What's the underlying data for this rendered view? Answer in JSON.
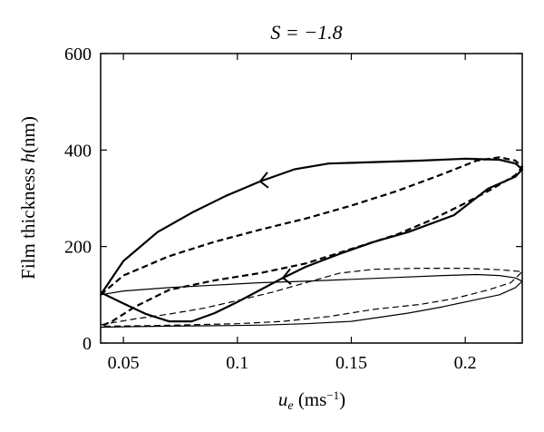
{
  "chart_data": {
    "type": "line",
    "title": "S = −1.8",
    "ylabel": "Film thickness h(nm)",
    "xlabel": "u_e (ms⁻¹)",
    "xlim": [
      0.04,
      0.225
    ],
    "ylim": [
      0,
      600
    ],
    "xticks": [
      0.05,
      0.1,
      0.15,
      0.2
    ],
    "xtick_labels": [
      "0.05",
      "0.1",
      "0.15",
      "0.2"
    ],
    "yticks": [
      0,
      200,
      400,
      600
    ],
    "ytick_labels": [
      "0",
      "200",
      "400",
      "600"
    ],
    "grid": false,
    "legend": "none",
    "series": [
      {
        "style": "thick-solid",
        "points": [
          [
            0.04,
            100
          ],
          [
            0.05,
            170
          ],
          [
            0.065,
            230
          ],
          [
            0.08,
            270
          ],
          [
            0.095,
            305
          ],
          [
            0.11,
            335
          ],
          [
            0.125,
            360
          ],
          [
            0.14,
            372
          ],
          [
            0.16,
            375
          ],
          [
            0.18,
            378
          ],
          [
            0.2,
            382
          ],
          [
            0.215,
            380
          ],
          [
            0.222,
            372
          ],
          [
            0.225,
            360
          ],
          [
            0.222,
            345
          ],
          [
            0.21,
            320
          ],
          [
            0.195,
            265
          ],
          [
            0.175,
            230
          ],
          [
            0.16,
            210
          ],
          [
            0.145,
            185
          ],
          [
            0.13,
            158
          ],
          [
            0.12,
            135
          ],
          [
            0.11,
            110
          ],
          [
            0.1,
            85
          ],
          [
            0.09,
            62
          ],
          [
            0.08,
            45
          ],
          [
            0.07,
            45
          ],
          [
            0.06,
            60
          ],
          [
            0.05,
            82
          ],
          [
            0.04,
            105
          ]
        ],
        "arrows": [
          [
            0.11,
            335
          ],
          [
            0.12,
            135
          ]
        ]
      },
      {
        "style": "thick-dashed",
        "points": [
          [
            0.04,
            100
          ],
          [
            0.05,
            140
          ],
          [
            0.07,
            180
          ],
          [
            0.09,
            210
          ],
          [
            0.11,
            235
          ],
          [
            0.13,
            258
          ],
          [
            0.15,
            285
          ],
          [
            0.17,
            315
          ],
          [
            0.19,
            350
          ],
          [
            0.205,
            378
          ],
          [
            0.215,
            385
          ],
          [
            0.222,
            378
          ],
          [
            0.225,
            365
          ],
          [
            0.222,
            348
          ],
          [
            0.212,
            320
          ],
          [
            0.2,
            290
          ],
          [
            0.185,
            255
          ],
          [
            0.17,
            225
          ],
          [
            0.15,
            195
          ],
          [
            0.13,
            165
          ],
          [
            0.11,
            145
          ],
          [
            0.09,
            130
          ],
          [
            0.07,
            110
          ],
          [
            0.055,
            75
          ],
          [
            0.045,
            45
          ],
          [
            0.04,
            35
          ]
        ]
      },
      {
        "style": "thin-solid",
        "points": [
          [
            0.04,
            100
          ],
          [
            0.05,
            108
          ],
          [
            0.07,
            115
          ],
          [
            0.09,
            120
          ],
          [
            0.11,
            125
          ],
          [
            0.13,
            128
          ],
          [
            0.15,
            132
          ],
          [
            0.17,
            136
          ],
          [
            0.19,
            140
          ],
          [
            0.205,
            142
          ],
          [
            0.215,
            140
          ],
          [
            0.222,
            135
          ],
          [
            0.225,
            128
          ],
          [
            0.222,
            115
          ],
          [
            0.215,
            100
          ],
          [
            0.205,
            90
          ],
          [
            0.19,
            75
          ],
          [
            0.175,
            62
          ],
          [
            0.15,
            45
          ],
          [
            0.13,
            40
          ],
          [
            0.11,
            37
          ],
          [
            0.09,
            36
          ],
          [
            0.07,
            35
          ],
          [
            0.055,
            34
          ],
          [
            0.04,
            33
          ]
        ]
      },
      {
        "style": "thin-dashed",
        "points": [
          [
            0.04,
            38
          ],
          [
            0.055,
            50
          ],
          [
            0.07,
            60
          ],
          [
            0.085,
            72
          ],
          [
            0.1,
            88
          ],
          [
            0.115,
            105
          ],
          [
            0.13,
            125
          ],
          [
            0.145,
            145
          ],
          [
            0.16,
            153
          ],
          [
            0.18,
            155
          ],
          [
            0.2,
            155
          ],
          [
            0.215,
            152
          ],
          [
            0.225,
            148
          ],
          [
            0.22,
            125
          ],
          [
            0.21,
            110
          ],
          [
            0.195,
            92
          ],
          [
            0.18,
            80
          ],
          [
            0.16,
            70
          ],
          [
            0.14,
            55
          ],
          [
            0.12,
            45
          ],
          [
            0.1,
            40
          ],
          [
            0.08,
            38
          ],
          [
            0.06,
            36
          ],
          [
            0.04,
            35
          ]
        ]
      }
    ]
  }
}
